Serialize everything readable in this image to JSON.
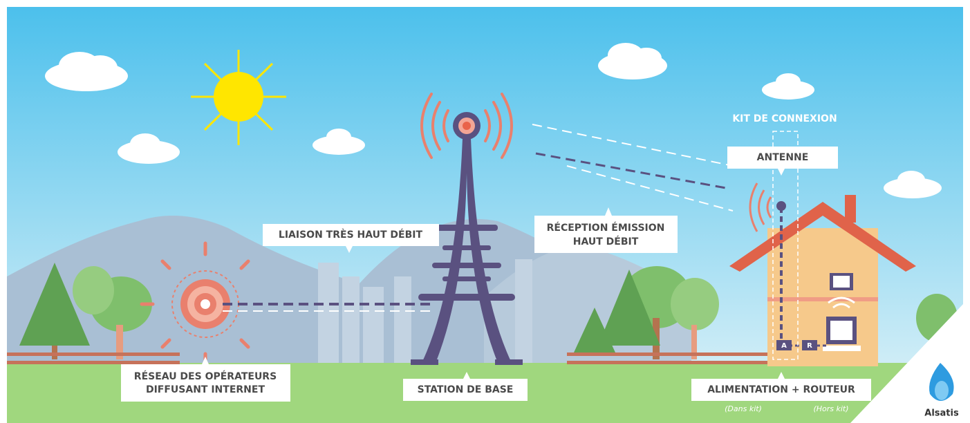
{
  "diagram": {
    "kit_title": "KIT DE CONNEXION",
    "antenna": "ANTENNE",
    "link": "LIAISON TRÈS HAUT DÉBIT",
    "reception": [
      "RÉCEPTION ÉMISSION",
      "HAUT DÉBIT"
    ],
    "network": [
      "RÉSEAU DES OPÉRATEURS",
      "DIFFUSANT INTERNET"
    ],
    "station": "STATION DE BASE",
    "power_router": "ALIMENTATION + ROUTEUR",
    "in_kit": "(Dans kit)",
    "out_kit": "(Hors kit)",
    "box_a": "A",
    "box_r": "R",
    "logo": "Alsatis"
  }
}
